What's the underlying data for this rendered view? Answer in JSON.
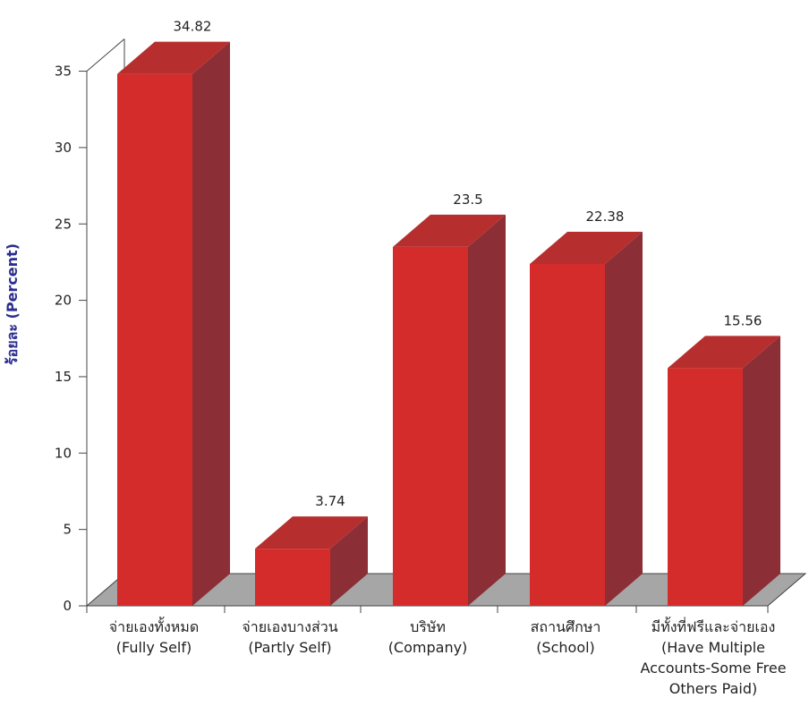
{
  "chart_data": {
    "type": "bar",
    "style": "3d",
    "categories": [
      [
        "จ่ายเองทั้งหมด",
        "(Fully Self)"
      ],
      [
        "จ่ายเองบางส่วน",
        "(Partly Self)"
      ],
      [
        "บริษัท",
        "(Company)"
      ],
      [
        "สถานศึกษา",
        "(School)"
      ],
      [
        "มีทั้งที่ฟรีและจ่ายเอง",
        "(Have Multiple",
        "Accounts-Some Free",
        "Others Paid)"
      ]
    ],
    "values": [
      34.82,
      3.74,
      23.5,
      22.38,
      15.56
    ],
    "data_labels": [
      "34.82",
      "3.74",
      "23.5",
      "22.38",
      "15.56"
    ],
    "ylabel": "ร้อยละ  (Percent)",
    "ylim": [
      0,
      35
    ],
    "yticks": [
      0,
      5,
      10,
      15,
      20,
      25,
      30,
      35
    ],
    "grid": false,
    "legend": "none",
    "colors": {
      "bar_front": "#d42b2b",
      "bar_top": "#b72e2e",
      "bar_side": "#8b2e35",
      "floor": "#a6a6a6",
      "axis": "#444444",
      "ylabel": "#2b2d8f"
    }
  }
}
